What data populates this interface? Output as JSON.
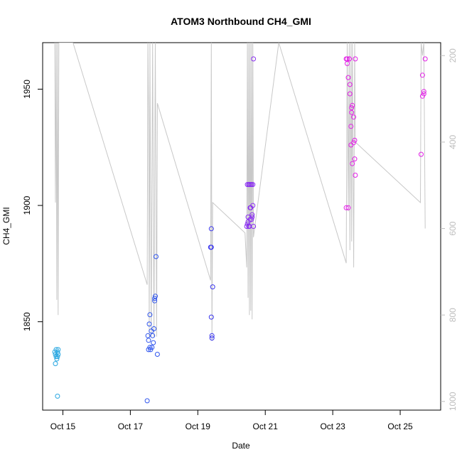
{
  "chart_data": {
    "type": "scatter",
    "title": "ATOM3 Northbound CH4_GMI",
    "xlabel": "Date",
    "ylabel": "CH4_GMI",
    "x_ticks": [
      "Oct 15",
      "Oct 17",
      "Oct 19",
      "Oct 21",
      "Oct 23",
      "Oct 25"
    ],
    "x_tick_days": [
      15,
      17,
      19,
      21,
      23,
      25
    ],
    "x_range": [
      14.4,
      26.2
    ],
    "y_ticks": [
      1850,
      1900,
      1950
    ],
    "y_range": [
      1812,
      1970
    ],
    "y2_label": "",
    "y2_ticks": [
      200,
      400,
      600,
      800,
      1000
    ],
    "y2_range": [
      1020,
      170
    ],
    "y2_reversed": true,
    "grid": false,
    "legend": "none",
    "colors": {
      "line": "#c8c8c8",
      "points_cyan": "#29a7e1",
      "points_blue": "#2244ee",
      "points_violet": "#9a1ff0",
      "points_magenta": "#e619e0",
      "axis": "#000000",
      "right_axis": "#bdbdbd"
    },
    "pressure_profile": [
      [
        14.76,
        170
      ],
      [
        14.78,
        540
      ],
      [
        14.8,
        170
      ],
      [
        14.82,
        765
      ],
      [
        14.84,
        170
      ],
      [
        14.86,
        800
      ],
      [
        14.88,
        170
      ],
      [
        15.3,
        170
      ],
      [
        17.5,
        730
      ],
      [
        17.52,
        170
      ],
      [
        17.54,
        320
      ],
      [
        17.56,
        850
      ],
      [
        17.58,
        170
      ],
      [
        17.62,
        850
      ],
      [
        17.66,
        170
      ],
      [
        17.7,
        850
      ],
      [
        17.74,
        170
      ],
      [
        17.78,
        850
      ],
      [
        17.8,
        310
      ],
      [
        19.38,
        720
      ],
      [
        19.4,
        170
      ],
      [
        19.42,
        860
      ],
      [
        19.44,
        540
      ],
      [
        20.4,
        610
      ],
      [
        20.45,
        690
      ],
      [
        20.47,
        170
      ],
      [
        20.49,
        760
      ],
      [
        20.51,
        170
      ],
      [
        20.53,
        800
      ],
      [
        20.55,
        170
      ],
      [
        20.57,
        790
      ],
      [
        20.59,
        170
      ],
      [
        20.61,
        810
      ],
      [
        20.63,
        170
      ],
      [
        20.65,
        620
      ],
      [
        21.4,
        170
      ],
      [
        23.4,
        680
      ],
      [
        23.43,
        170
      ],
      [
        23.46,
        560
      ],
      [
        23.49,
        170
      ],
      [
        23.51,
        650
      ],
      [
        23.54,
        170
      ],
      [
        23.56,
        630
      ],
      [
        23.58,
        170
      ],
      [
        23.62,
        690
      ],
      [
        23.65,
        170
      ],
      [
        23.67,
        400
      ],
      [
        25.6,
        540
      ],
      [
        25.62,
        170
      ],
      [
        25.66,
        200
      ],
      [
        25.7,
        170
      ],
      [
        25.74,
        600
      ]
    ],
    "series": [
      {
        "color": "#29a7e1",
        "x": [
          14.76,
          14.78,
          14.8,
          14.8,
          14.82,
          14.84,
          14.84,
          14.86,
          14.86,
          14.78,
          14.84
        ],
        "y": [
          1837,
          1836,
          1835,
          1838,
          1834,
          1837,
          1835,
          1836,
          1838,
          1832,
          1818
        ]
      },
      {
        "color": "#2f55ee",
        "x": [
          17.5,
          17.52,
          17.54,
          17.56,
          17.58,
          17.6,
          17.62,
          17.64,
          17.66,
          17.68,
          17.7,
          17.72,
          17.72,
          17.74,
          17.76,
          17.8,
          17.58,
          17.54
        ],
        "y": [
          1816,
          1844,
          1838,
          1849,
          1853,
          1838,
          1846,
          1839,
          1844,
          1841,
          1847,
          1859,
          1860,
          1861,
          1878,
          1836,
          1839,
          1842
        ]
      },
      {
        "color": "#3a36ee",
        "x": [
          19.38,
          19.4,
          19.4,
          19.42,
          19.42,
          19.44,
          19.4
        ],
        "y": [
          1882,
          1890,
          1852,
          1843,
          1844,
          1865,
          1882
        ]
      },
      {
        "color": "#8a2ff0",
        "x": [
          20.45,
          20.47,
          20.49,
          20.51,
          20.53,
          20.55,
          20.57,
          20.59,
          20.61,
          20.63,
          20.65,
          20.47,
          20.51,
          20.55,
          20.59,
          20.63,
          20.49,
          20.53,
          20.57,
          20.61,
          20.65,
          20.52
        ],
        "y": [
          1891,
          1909,
          1895,
          1891,
          1909,
          1894,
          1899,
          1909,
          1896,
          1909,
          1891,
          1892,
          1909,
          1899,
          1894,
          1900,
          1893,
          1891,
          1909,
          1895,
          1963,
          1891
        ]
      },
      {
        "color": "#e21fe6",
        "x": [
          23.4,
          23.43,
          23.46,
          23.49,
          23.51,
          23.54,
          23.56,
          23.58,
          23.62,
          23.65,
          23.67,
          23.4,
          23.46,
          23.51,
          23.56,
          23.62,
          23.67,
          23.43,
          23.49,
          23.54,
          23.58,
          23.65
        ],
        "y": [
          1963,
          1961,
          1955,
          1963,
          1952,
          1934,
          1940,
          1918,
          1938,
          1920,
          1913,
          1899,
          1899,
          1948,
          1942,
          1927,
          1963,
          1963,
          1963,
          1926,
          1943,
          1928
        ]
      },
      {
        "color": "#e21fe6",
        "x": [
          25.62,
          25.66,
          25.7,
          25.74,
          25.7,
          25.66
        ],
        "y": [
          1922,
          1956,
          1949,
          1963,
          1948,
          1947
        ]
      }
    ]
  }
}
